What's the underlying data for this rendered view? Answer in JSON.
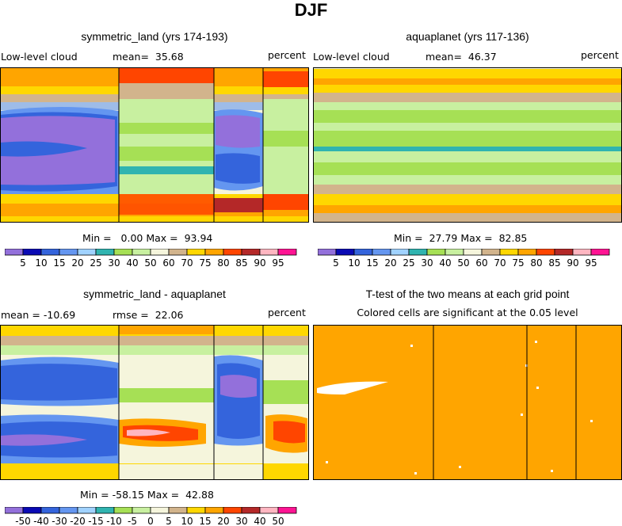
{
  "page_title": "DJF",
  "palettes": {
    "abs": [
      "#9370db",
      "#0a0ab4",
      "#3464dc",
      "#6496f0",
      "#a0d2ff",
      "#30b4b0",
      "#a6e055",
      "#c8f0a0",
      "#f5f5dc",
      "#d2b48c",
      "#ffd700",
      "#ffa500",
      "#ff4500",
      "#b42828",
      "#ffb6c1",
      "#ff1493"
    ],
    "diff": [
      "#9370db",
      "#0a0ab4",
      "#3464dc",
      "#6496f0",
      "#a0d2ff",
      "#30b4b0",
      "#a6e055",
      "#c8f0a0",
      "#f5f5dc",
      "#d2b48c",
      "#ffd700",
      "#ffa500",
      "#ff4500",
      "#b42828",
      "#ffb6c1",
      "#ff1493"
    ],
    "ttest_fill": "#ffa500"
  },
  "panels": {
    "p1": {
      "title": "symmetric_land (yrs 174-193)",
      "left_label": "Low-level cloud",
      "center_label": "mean=  35.68",
      "right_label": "percent",
      "minmax": "Min =   0.00 Max =  93.94",
      "colorbar_labels": [
        "5",
        "10",
        "15",
        "20",
        "25",
        "30",
        "40",
        "50",
        "60",
        "70",
        "75",
        "80",
        "85",
        "90",
        "95"
      ]
    },
    "p2": {
      "title": "aquaplanet (yrs 117-136)",
      "left_label": "Low-level cloud",
      "center_label": "mean=  46.37",
      "right_label": "percent",
      "minmax": "Min =  27.79 Max =  82.85",
      "colorbar_labels": [
        "5",
        "10",
        "15",
        "20",
        "25",
        "30",
        "40",
        "50",
        "60",
        "70",
        "75",
        "80",
        "85",
        "90",
        "95"
      ]
    },
    "p3": {
      "title": "symmetric_land - aquaplanet",
      "left_label": "mean = -10.69",
      "center_label": "rmse =  22.06",
      "right_label": "percent",
      "minmax": "Min = -58.15 Max =  42.88",
      "colorbar_labels": [
        "-50",
        "-40",
        "-30",
        "-20",
        "-15",
        "-10",
        "-5",
        "0",
        "5",
        "10",
        "15",
        "20",
        "30",
        "40",
        "50"
      ]
    },
    "p4": {
      "title": "T-test of the two means at each grid point",
      "subtitle": "Colored cells are significant at the 0.05 level"
    }
  },
  "chart_data": [
    {
      "type": "heatmap",
      "title": "symmetric_land (yrs 174-193)",
      "variable": "Low-level cloud",
      "units": "percent",
      "mean": 35.68,
      "min": 0.0,
      "max": 93.94,
      "levels": [
        5,
        10,
        15,
        20,
        25,
        30,
        40,
        50,
        60,
        70,
        75,
        80,
        85,
        90,
        95
      ]
    },
    {
      "type": "heatmap",
      "title": "aquaplanet (yrs 117-136)",
      "variable": "Low-level cloud",
      "units": "percent",
      "mean": 46.37,
      "min": 27.79,
      "max": 82.85,
      "levels": [
        5,
        10,
        15,
        20,
        25,
        30,
        40,
        50,
        60,
        70,
        75,
        80,
        85,
        90,
        95
      ]
    },
    {
      "type": "heatmap",
      "title": "symmetric_land - aquaplanet",
      "units": "percent",
      "mean": -10.69,
      "rmse": 22.06,
      "min": -58.15,
      "max": 42.88,
      "levels": [
        -50,
        -40,
        -30,
        -20,
        -15,
        -10,
        -5,
        0,
        5,
        10,
        15,
        20,
        30,
        40,
        50
      ]
    },
    {
      "type": "heatmap",
      "title": "T-test of the two means at each grid point",
      "subtitle": "Colored cells are significant at the 0.05 level"
    }
  ]
}
